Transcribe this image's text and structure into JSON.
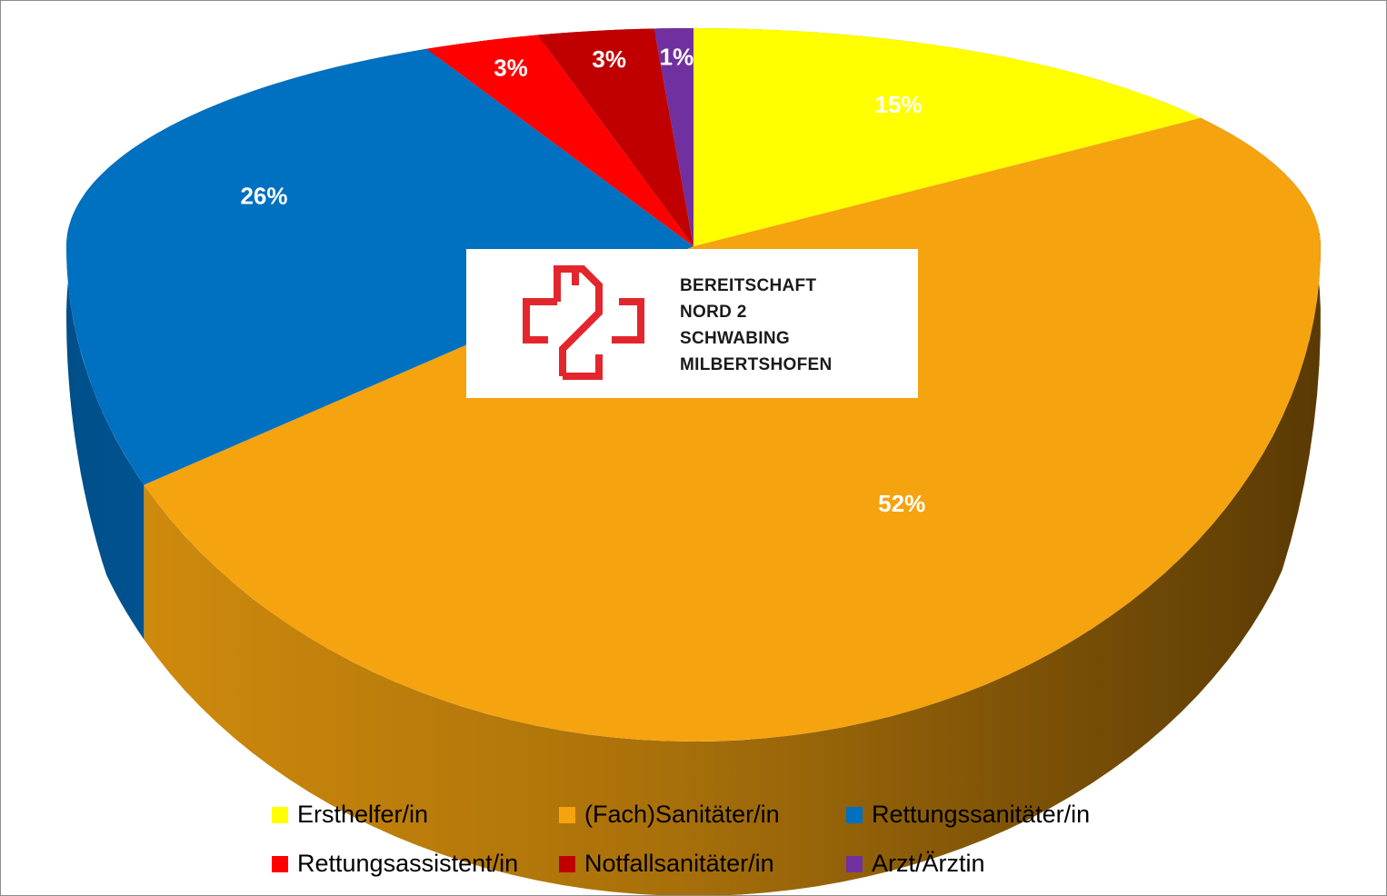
{
  "chart_data": {
    "type": "pie",
    "title": "",
    "style": "3d-exploded-perspective",
    "legend_position": "bottom",
    "slices": [
      {
        "name": "Ersthelfer/in",
        "value": 15,
        "label": "15%",
        "color": "#ffff00",
        "side_color": "#a6a600"
      },
      {
        "name": "(Fach)Sanitäter/in",
        "value": 52,
        "label": "52%",
        "color": "#f5a30f",
        "side_color": "#7a4e06"
      },
      {
        "name": "Rettungssanitäter/in",
        "value": 26,
        "label": "26%",
        "color": "#0070c0",
        "side_color": "#004c86"
      },
      {
        "name": "Rettungsassistent/in",
        "value": 3,
        "label": "3%",
        "color": "#ff0000",
        "side_color": "#a00000"
      },
      {
        "name": "Notfallsanitäter/in",
        "value": 3,
        "label": "3%",
        "color": "#c00000",
        "side_color": "#7a0000"
      },
      {
        "name": "Arzt/Ärztin",
        "value": 1,
        "label": "1%",
        "color": "#7030a0",
        "side_color": "#48206a"
      }
    ]
  },
  "logo": {
    "lines": [
      "BEREITSCHAFT",
      "NORD 2",
      "SCHWABING",
      "MILBERTSHOFEN"
    ],
    "icon": "red-cross-2-icon",
    "color": "#e3262d"
  }
}
